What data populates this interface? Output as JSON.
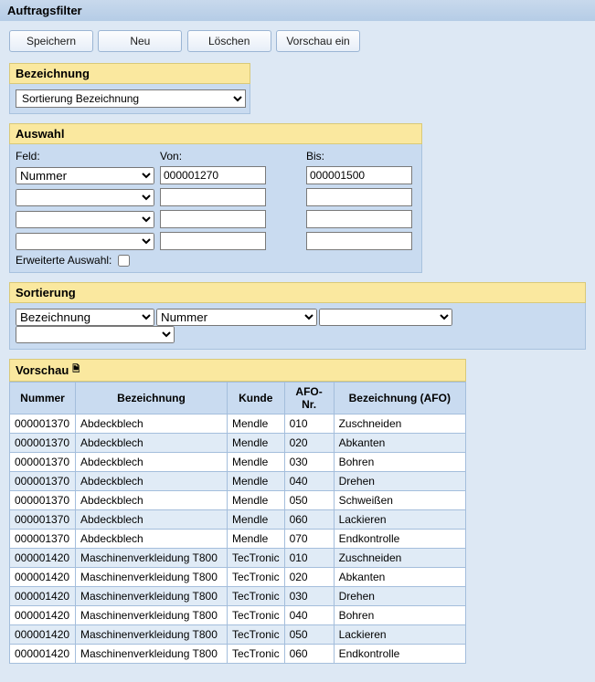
{
  "window": {
    "title": "Auftragsfilter"
  },
  "buttons": {
    "save": "Speichern",
    "new": "Neu",
    "delete": "Löschen",
    "preview_toggle": "Vorschau ein"
  },
  "bezeichnung": {
    "header": "Bezeichnung",
    "selected": "Sortierung Bezeichnung"
  },
  "auswahl": {
    "header": "Auswahl",
    "labels": {
      "feld": "Feld:",
      "von": "Von:",
      "bis": "Bis:"
    },
    "rows": [
      {
        "feld": "Nummer",
        "von": "000001270",
        "bis": "000001500"
      },
      {
        "feld": "",
        "von": "",
        "bis": ""
      },
      {
        "feld": "",
        "von": "",
        "bis": ""
      },
      {
        "feld": "",
        "von": "",
        "bis": ""
      }
    ],
    "erweiterte_label": "Erweiterte Auswahl:",
    "erweiterte_checked": false
  },
  "sortierung": {
    "header": "Sortierung",
    "values": [
      "Bezeichnung",
      "Nummer",
      "",
      ""
    ]
  },
  "vorschau": {
    "header": "Vorschau",
    "columns": [
      "Nummer",
      "Bezeichnung",
      "Kunde",
      "AFO-Nr.",
      "Bezeichnung (AFO)"
    ],
    "rows": [
      [
        "000001370",
        "Abdeckblech",
        "Mendle",
        "010",
        "Zuschneiden"
      ],
      [
        "000001370",
        "Abdeckblech",
        "Mendle",
        "020",
        "Abkanten"
      ],
      [
        "000001370",
        "Abdeckblech",
        "Mendle",
        "030",
        "Bohren"
      ],
      [
        "000001370",
        "Abdeckblech",
        "Mendle",
        "040",
        "Drehen"
      ],
      [
        "000001370",
        "Abdeckblech",
        "Mendle",
        "050",
        "Schweißen"
      ],
      [
        "000001370",
        "Abdeckblech",
        "Mendle",
        "060",
        "Lackieren"
      ],
      [
        "000001370",
        "Abdeckblech",
        "Mendle",
        "070",
        "Endkontrolle"
      ],
      [
        "000001420",
        "Maschinenverkleidung T800",
        "TecTronic",
        "010",
        "Zuschneiden"
      ],
      [
        "000001420",
        "Maschinenverkleidung T800",
        "TecTronic",
        "020",
        "Abkanten"
      ],
      [
        "000001420",
        "Maschinenverkleidung T800",
        "TecTronic",
        "030",
        "Drehen"
      ],
      [
        "000001420",
        "Maschinenverkleidung T800",
        "TecTronic",
        "040",
        "Bohren"
      ],
      [
        "000001420",
        "Maschinenverkleidung T800",
        "TecTronic",
        "050",
        "Lackieren"
      ],
      [
        "000001420",
        "Maschinenverkleidung T800",
        "TecTronic",
        "060",
        "Endkontrolle"
      ]
    ]
  },
  "colors": {
    "page_bg": "#dde8f4",
    "section_header_bg": "#fae89f",
    "panel_bg": "#c9dbf0",
    "row_alt_bg": "#e0ebf6"
  }
}
